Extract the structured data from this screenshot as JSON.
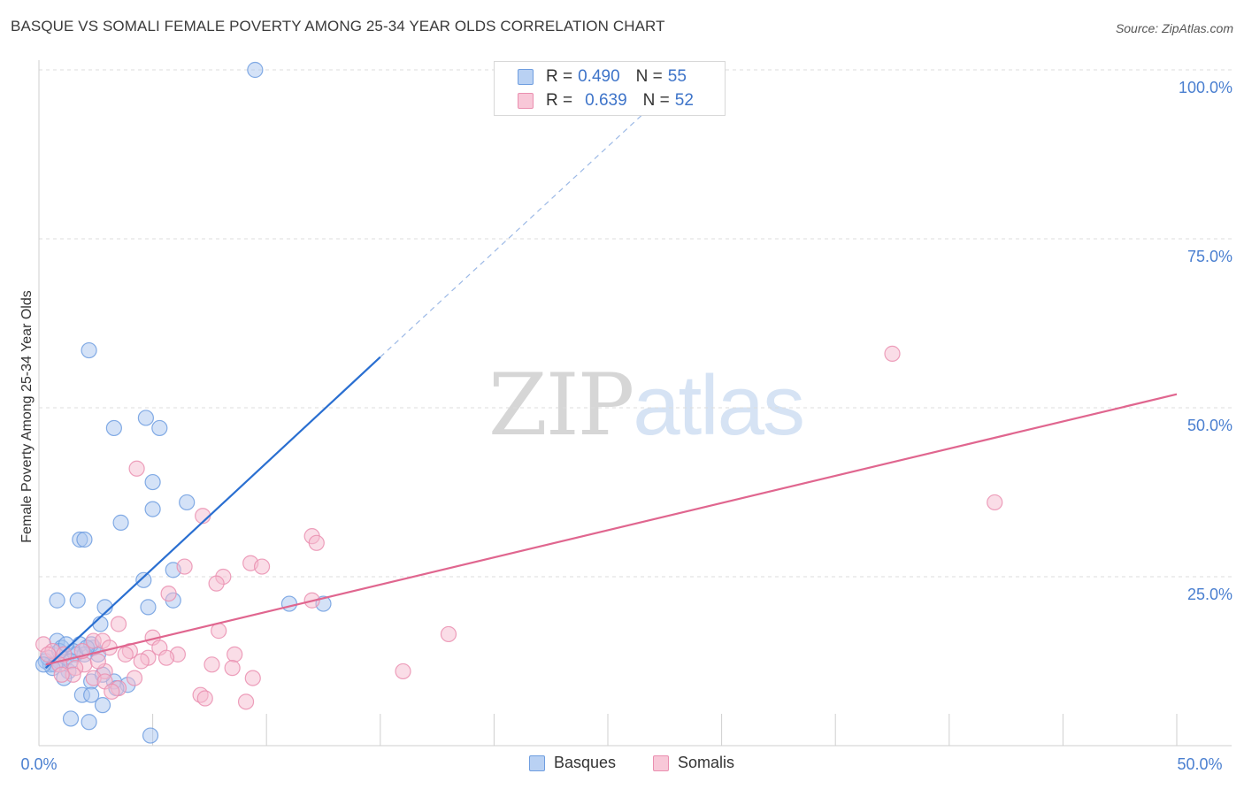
{
  "title": "BASQUE VS SOMALI FEMALE POVERTY AMONG 25-34 YEAR OLDS CORRELATION CHART",
  "source": "Source: ZipAtlas.com",
  "watermark": {
    "zip": "ZIP",
    "atlas": "atlas"
  },
  "legend": {
    "rows": [
      {
        "r_label": "R =",
        "r_value": "0.490",
        "n_label": "N =",
        "n_value": "55"
      },
      {
        "r_label": "R =",
        "r_value": "0.639",
        "n_label": "N =",
        "n_value": "52"
      }
    ]
  },
  "chart_data": {
    "type": "scatter",
    "title": "BASQUE VS SOMALI FEMALE POVERTY AMONG 25-34 YEAR OLDS CORRELATION CHART",
    "xlabel": "",
    "ylabel": "Female Poverty Among 25-34 Year Olds",
    "xlim": [
      0,
      50
    ],
    "ylim": [
      0,
      100
    ],
    "x_tick_labels": [
      "0.0%",
      "50.0%"
    ],
    "y_ticks": [
      25,
      50,
      75,
      100
    ],
    "y_tick_labels": [
      "25.0%",
      "50.0%",
      "75.0%",
      "100.0%"
    ],
    "grid": true,
    "legend_position": "top-center",
    "colors": {
      "basques_fill": "#a9c6ef",
      "basques_stroke": "#6f9ee0",
      "basques_line": "#2a6fd1",
      "somalis_fill": "#f6bcd0",
      "somalis_stroke": "#ea8fb0",
      "somalis_line": "#e0668f"
    },
    "series": [
      {
        "name": "Basques",
        "trend": {
          "x0": 0.3,
          "y0": 11.5,
          "x1": 15.0,
          "y1": 57.5,
          "dash_to_x": 28.0,
          "dash_to_y": 98.0
        },
        "points": [
          [
            9.5,
            100.0
          ],
          [
            2.2,
            58.5
          ],
          [
            3.3,
            47.0
          ],
          [
            4.7,
            48.5
          ],
          [
            5.3,
            47.0
          ],
          [
            5.0,
            39.0
          ],
          [
            5.0,
            35.0
          ],
          [
            6.5,
            36.0
          ],
          [
            3.6,
            33.0
          ],
          [
            1.8,
            30.5
          ],
          [
            2.0,
            30.5
          ],
          [
            4.6,
            24.5
          ],
          [
            5.9,
            26.0
          ],
          [
            0.8,
            21.5
          ],
          [
            1.7,
            21.5
          ],
          [
            2.9,
            20.5
          ],
          [
            4.8,
            20.5
          ],
          [
            5.9,
            21.5
          ],
          [
            11.0,
            21.0
          ],
          [
            12.5,
            21.0
          ],
          [
            2.7,
            18.0
          ],
          [
            0.8,
            15.5
          ],
          [
            1.8,
            15.0
          ],
          [
            2.4,
            14.5
          ],
          [
            0.3,
            12.5
          ],
          [
            0.5,
            12.0
          ],
          [
            0.9,
            12.5
          ],
          [
            1.2,
            13.0
          ],
          [
            1.5,
            14.0
          ],
          [
            1.0,
            14.5
          ],
          [
            2.3,
            15.0
          ],
          [
            2.6,
            13.5
          ],
          [
            0.4,
            13.0
          ],
          [
            0.7,
            12.0
          ],
          [
            1.3,
            11.0
          ],
          [
            0.6,
            11.5
          ],
          [
            2.0,
            13.5
          ],
          [
            1.1,
            10.0
          ],
          [
            3.3,
            9.5
          ],
          [
            2.3,
            9.5
          ],
          [
            2.8,
            10.5
          ],
          [
            3.9,
            9.0
          ],
          [
            3.4,
            8.5
          ],
          [
            1.9,
            7.5
          ],
          [
            2.3,
            7.5
          ],
          [
            2.8,
            6.0
          ],
          [
            1.4,
            4.0
          ],
          [
            2.2,
            3.5
          ],
          [
            4.9,
            1.5
          ],
          [
            1.6,
            13.5
          ],
          [
            0.9,
            14.0
          ],
          [
            1.4,
            12.5
          ],
          [
            0.2,
            12.0
          ],
          [
            2.1,
            14.5
          ],
          [
            1.2,
            15.0
          ]
        ]
      },
      {
        "name": "Somalis",
        "trend": {
          "x0": 0.3,
          "y0": 12.0,
          "x1": 50.0,
          "y1": 52.0
        },
        "points": [
          [
            37.5,
            58.0
          ],
          [
            42.0,
            36.0
          ],
          [
            4.3,
            41.0
          ],
          [
            7.2,
            34.0
          ],
          [
            12.0,
            31.0
          ],
          [
            12.2,
            30.0
          ],
          [
            9.3,
            27.0
          ],
          [
            9.8,
            26.5
          ],
          [
            6.4,
            26.5
          ],
          [
            8.1,
            25.0
          ],
          [
            7.8,
            24.0
          ],
          [
            5.7,
            22.5
          ],
          [
            12.0,
            21.5
          ],
          [
            3.5,
            18.0
          ],
          [
            7.9,
            17.0
          ],
          [
            18.0,
            16.5
          ],
          [
            5.0,
            16.0
          ],
          [
            2.4,
            15.5
          ],
          [
            2.8,
            15.5
          ],
          [
            0.2,
            15.0
          ],
          [
            3.1,
            14.5
          ],
          [
            4.0,
            14.0
          ],
          [
            5.3,
            14.5
          ],
          [
            0.6,
            14.0
          ],
          [
            1.1,
            13.5
          ],
          [
            3.8,
            13.5
          ],
          [
            6.1,
            13.5
          ],
          [
            8.6,
            13.5
          ],
          [
            5.6,
            13.0
          ],
          [
            4.8,
            13.0
          ],
          [
            4.5,
            12.5
          ],
          [
            2.0,
            12.0
          ],
          [
            1.6,
            11.5
          ],
          [
            2.9,
            11.0
          ],
          [
            0.9,
            12.0
          ],
          [
            7.6,
            12.0
          ],
          [
            8.5,
            11.5
          ],
          [
            16.0,
            11.0
          ],
          [
            1.5,
            10.5
          ],
          [
            4.2,
            10.0
          ],
          [
            9.4,
            10.0
          ],
          [
            2.4,
            10.0
          ],
          [
            2.9,
            9.5
          ],
          [
            1.0,
            10.5
          ],
          [
            3.5,
            8.5
          ],
          [
            3.2,
            8.0
          ],
          [
            7.1,
            7.5
          ],
          [
            7.3,
            7.0
          ],
          [
            9.1,
            6.5
          ],
          [
            1.9,
            14.0
          ],
          [
            0.4,
            13.5
          ],
          [
            2.6,
            12.5
          ]
        ]
      }
    ]
  },
  "bottom_legend": {
    "basques": "Basques",
    "somalis": "Somalis"
  }
}
